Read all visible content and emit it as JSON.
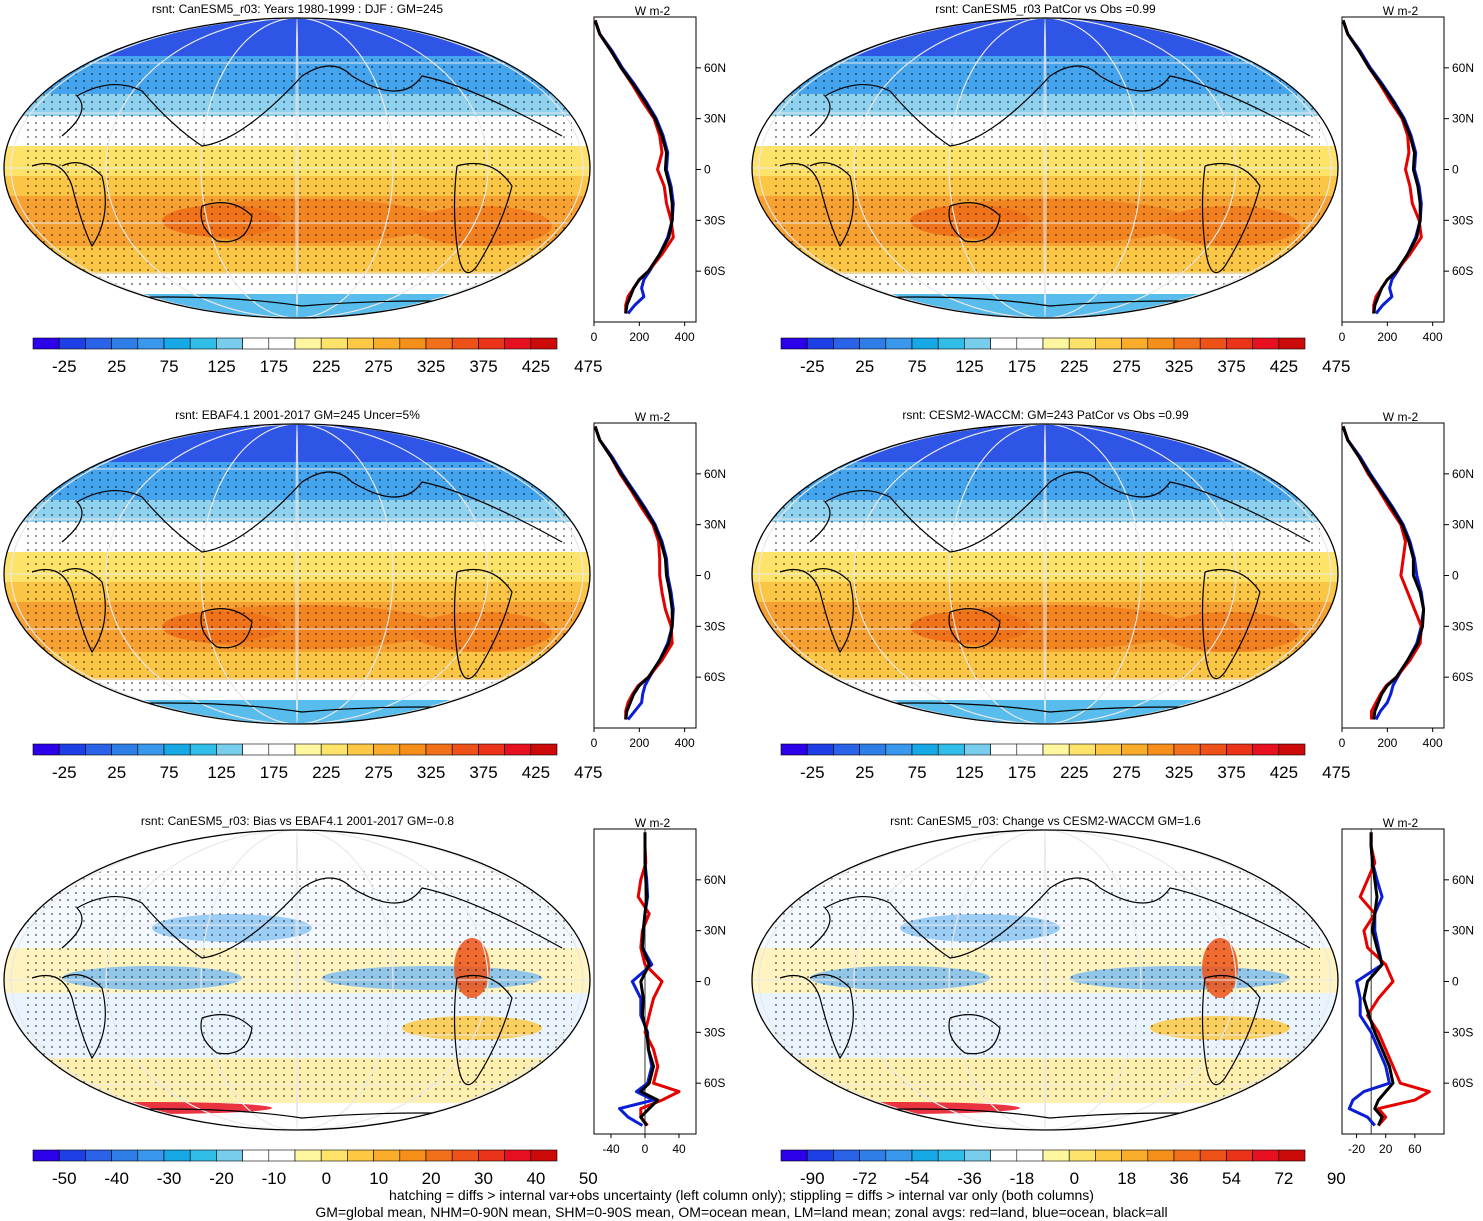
{
  "footer": {
    "line1": "hatching = diffs > internal var+obs uncertainty (left column only); stippling = diffs > internal var only (both columns)",
    "line2": "GM=global mean, NHM=0-90N mean, SHM=0-90S mean, OM=ocean mean, LM=land mean; zonal avgs: red=land, blue=ocean, black=all"
  },
  "colors": {
    "land_line": "#e60000",
    "ocean_line": "#0a1ed6",
    "all_line": "#000000",
    "abs_palette": [
      "#2c00e8",
      "#1e3fe6",
      "#2a62e8",
      "#2f7ee8",
      "#3a98ec",
      "#17a8e6",
      "#30bde8",
      "#78cdec",
      "#ffffff",
      "#ffffff",
      "#fff6a0",
      "#fde36a",
      "#fdc844",
      "#f9ab2a",
      "#f68e1a",
      "#f2701a",
      "#ee5218",
      "#ea3318",
      "#e61020",
      "#cc0a0a"
    ],
    "diff_palette": [
      "#2c00e8",
      "#1e3fe6",
      "#2a62e8",
      "#2f7ee8",
      "#3a98ec",
      "#17a8e6",
      "#30bde8",
      "#78cdec",
      "#ffffff",
      "#ffffff",
      "#fff6a0",
      "#fde36a",
      "#fdc844",
      "#f9ab2a",
      "#f68e1a",
      "#f2701a",
      "#ee5218",
      "#ea3318",
      "#e61020",
      "#cc0a0a"
    ]
  },
  "chart_data": [
    {
      "type": "heatmap",
      "title": "rsnt: CanESM5_r03: Years 1980-1999 : DJF : GM=245",
      "colorbar_ticks": [
        "-25",
        "25",
        "75",
        "125",
        "175",
        "225",
        "275",
        "325",
        "375",
        "425",
        "475"
      ],
      "zonal_profile": {
        "units": "W m-2",
        "xlim": [
          0,
          450
        ],
        "xticks": [
          "0",
          "200",
          "400"
        ],
        "yticks": [
          "60N",
          "30N",
          "0",
          "30S",
          "60S"
        ],
        "ylim": [
          -90,
          90
        ],
        "lat": [
          88,
          80,
          70,
          60,
          50,
          40,
          30,
          20,
          10,
          0,
          -10,
          -20,
          -30,
          -40,
          -50,
          -60,
          -65,
          -70,
          -75,
          -80,
          -85
        ],
        "all": [
          5,
          25,
          75,
          120,
          175,
          225,
          270,
          300,
          320,
          315,
          335,
          345,
          345,
          330,
          290,
          240,
          200,
          175,
          160,
          145,
          140
        ],
        "land": [
          5,
          25,
          75,
          120,
          170,
          215,
          265,
          290,
          300,
          280,
          310,
          320,
          340,
          350,
          300,
          240,
          200,
          175,
          150,
          140,
          140
        ],
        "ocean": [
          5,
          25,
          80,
          125,
          180,
          230,
          275,
          305,
          325,
          320,
          340,
          350,
          345,
          325,
          290,
          245,
          220,
          210,
          220,
          180,
          150
        ]
      }
    },
    {
      "type": "heatmap",
      "title": "rsnt: CanESM5_r03 PatCor vs Obs =0.99",
      "colorbar_ticks": [
        "-25",
        "25",
        "75",
        "125",
        "175",
        "225",
        "275",
        "325",
        "375",
        "425",
        "475"
      ],
      "zonal_profile": {
        "units": "W m-2",
        "xlim": [
          0,
          450
        ],
        "xticks": [
          "0",
          "200",
          "400"
        ],
        "yticks": [
          "60N",
          "30N",
          "0",
          "30S",
          "60S"
        ],
        "ylim": [
          -90,
          90
        ],
        "lat": [
          88,
          80,
          70,
          60,
          50,
          40,
          30,
          20,
          10,
          0,
          -10,
          -20,
          -30,
          -40,
          -50,
          -60,
          -65,
          -70,
          -75,
          -80,
          -85
        ],
        "all": [
          5,
          25,
          75,
          120,
          175,
          225,
          270,
          300,
          320,
          315,
          335,
          345,
          345,
          330,
          290,
          240,
          200,
          175,
          160,
          145,
          140
        ],
        "land": [
          5,
          25,
          75,
          120,
          170,
          215,
          265,
          290,
          295,
          280,
          300,
          310,
          340,
          350,
          300,
          240,
          200,
          175,
          150,
          140,
          140
        ],
        "ocean": [
          5,
          25,
          80,
          125,
          180,
          230,
          275,
          305,
          325,
          320,
          340,
          350,
          345,
          325,
          290,
          245,
          220,
          210,
          220,
          180,
          150
        ]
      }
    },
    {
      "type": "heatmap",
      "title": "rsnt: EBAF4.1 2001-2017 GM=245 Uncer=5%",
      "colorbar_ticks": [
        "-25",
        "25",
        "75",
        "125",
        "175",
        "225",
        "275",
        "325",
        "375",
        "425",
        "475"
      ],
      "zonal_profile": {
        "units": "W m-2",
        "xlim": [
          0,
          450
        ],
        "xticks": [
          "0",
          "200",
          "400"
        ],
        "yticks": [
          "60N",
          "30N",
          "0",
          "30S",
          "60S"
        ],
        "ylim": [
          -90,
          90
        ],
        "lat": [
          88,
          80,
          70,
          60,
          50,
          40,
          30,
          20,
          10,
          0,
          -10,
          -20,
          -30,
          -40,
          -50,
          -60,
          -65,
          -70,
          -75,
          -80,
          -85
        ],
        "all": [
          5,
          25,
          75,
          120,
          170,
          220,
          265,
          295,
          315,
          320,
          335,
          345,
          345,
          330,
          290,
          240,
          200,
          175,
          160,
          145,
          140
        ],
        "land": [
          5,
          25,
          75,
          115,
          165,
          210,
          260,
          285,
          290,
          290,
          300,
          315,
          340,
          345,
          300,
          240,
          195,
          170,
          150,
          140,
          140
        ],
        "ocean": [
          5,
          25,
          80,
          125,
          175,
          225,
          270,
          300,
          320,
          325,
          340,
          350,
          345,
          325,
          290,
          245,
          225,
          215,
          210,
          180,
          150
        ]
      }
    },
    {
      "type": "heatmap",
      "title": "rsnt: CESM2-WACCM: GM=243 PatCor vs Obs =0.99",
      "colorbar_ticks": [
        "-25",
        "25",
        "75",
        "125",
        "175",
        "225",
        "275",
        "325",
        "375",
        "425",
        "475"
      ],
      "zonal_profile": {
        "units": "W m-2",
        "xlim": [
          0,
          450
        ],
        "xticks": [
          "0",
          "200",
          "400"
        ],
        "yticks": [
          "60N",
          "30N",
          "0",
          "30S",
          "60S"
        ],
        "ylim": [
          -90,
          90
        ],
        "lat": [
          88,
          80,
          70,
          60,
          50,
          40,
          30,
          20,
          10,
          0,
          -10,
          -20,
          -30,
          -40,
          -50,
          -60,
          -65,
          -70,
          -75,
          -80,
          -85
        ],
        "all": [
          5,
          25,
          75,
          120,
          170,
          220,
          265,
          295,
          315,
          315,
          345,
          360,
          355,
          335,
          290,
          240,
          200,
          175,
          160,
          145,
          140
        ],
        "land": [
          5,
          25,
          75,
          115,
          165,
          210,
          260,
          280,
          270,
          260,
          290,
          320,
          350,
          345,
          300,
          240,
          195,
          170,
          150,
          130,
          130
        ],
        "ocean": [
          5,
          25,
          80,
          125,
          175,
          225,
          270,
          300,
          320,
          330,
          350,
          360,
          350,
          330,
          290,
          245,
          225,
          215,
          200,
          170,
          150
        ]
      }
    },
    {
      "type": "heatmap",
      "title": "rsnt: CanESM5_r03: Bias vs EBAF4.1 2001-2017 GM=-0.8",
      "colorbar_ticks": [
        "-50",
        "-40",
        "-30",
        "-20",
        "-10",
        "0",
        "10",
        "20",
        "30",
        "40",
        "50"
      ],
      "zonal_profile": {
        "units": "W m-2",
        "xlim": [
          -60,
          60
        ],
        "xticks": [
          "-40",
          "0",
          "40"
        ],
        "yticks": [
          "60N",
          "30N",
          "0",
          "30S",
          "60S"
        ],
        "ylim": [
          -90,
          90
        ],
        "lat": [
          88,
          80,
          70,
          60,
          50,
          40,
          30,
          20,
          10,
          0,
          -10,
          -20,
          -30,
          -40,
          -50,
          -60,
          -65,
          -70,
          -75,
          -80,
          -85
        ],
        "all": [
          0,
          0,
          0,
          1,
          2,
          0,
          -2,
          -3,
          5,
          -5,
          -2,
          -3,
          2,
          4,
          10,
          5,
          -5,
          15,
          5,
          -5,
          2
        ],
        "land": [
          0,
          0,
          1,
          -5,
          -8,
          5,
          -3,
          -5,
          0,
          20,
          10,
          5,
          0,
          10,
          15,
          10,
          40,
          20,
          -5,
          -5,
          3
        ],
        "ocean": [
          0,
          0,
          0,
          2,
          3,
          0,
          -2,
          -3,
          8,
          -15,
          -5,
          -5,
          3,
          4,
          8,
          3,
          -10,
          10,
          -30,
          -20,
          -3
        ]
      }
    },
    {
      "type": "heatmap",
      "title": "rsnt: CanESM5_r03: Change vs CESM2-WACCM GM=1.6",
      "colorbar_ticks": [
        "-90",
        "-72",
        "-54",
        "-36",
        "-18",
        "0",
        "18",
        "36",
        "54",
        "72",
        "90"
      ],
      "zonal_profile": {
        "units": "W m-2",
        "xlim": [
          -40,
          100
        ],
        "xticks": [
          "-20",
          "20",
          "60"
        ],
        "yticks": [
          "60N",
          "30N",
          "0",
          "30S",
          "60S"
        ],
        "ylim": [
          -90,
          90
        ],
        "lat": [
          88,
          80,
          70,
          60,
          50,
          40,
          30,
          20,
          10,
          0,
          -10,
          -20,
          -30,
          -40,
          -50,
          -60,
          -65,
          -70,
          -75,
          -80,
          -85
        ],
        "all": [
          0,
          0,
          2,
          5,
          8,
          5,
          2,
          8,
          15,
          -5,
          -10,
          -3,
          5,
          15,
          25,
          30,
          20,
          10,
          5,
          15,
          10
        ],
        "land": [
          0,
          0,
          5,
          -5,
          -15,
          5,
          -10,
          -5,
          20,
          30,
          10,
          -5,
          10,
          20,
          30,
          40,
          80,
          60,
          10,
          20,
          10
        ],
        "ocean": [
          0,
          0,
          2,
          8,
          15,
          5,
          5,
          10,
          15,
          -20,
          -15,
          -15,
          0,
          10,
          20,
          25,
          -10,
          -25,
          -30,
          -5,
          5
        ]
      }
    }
  ]
}
